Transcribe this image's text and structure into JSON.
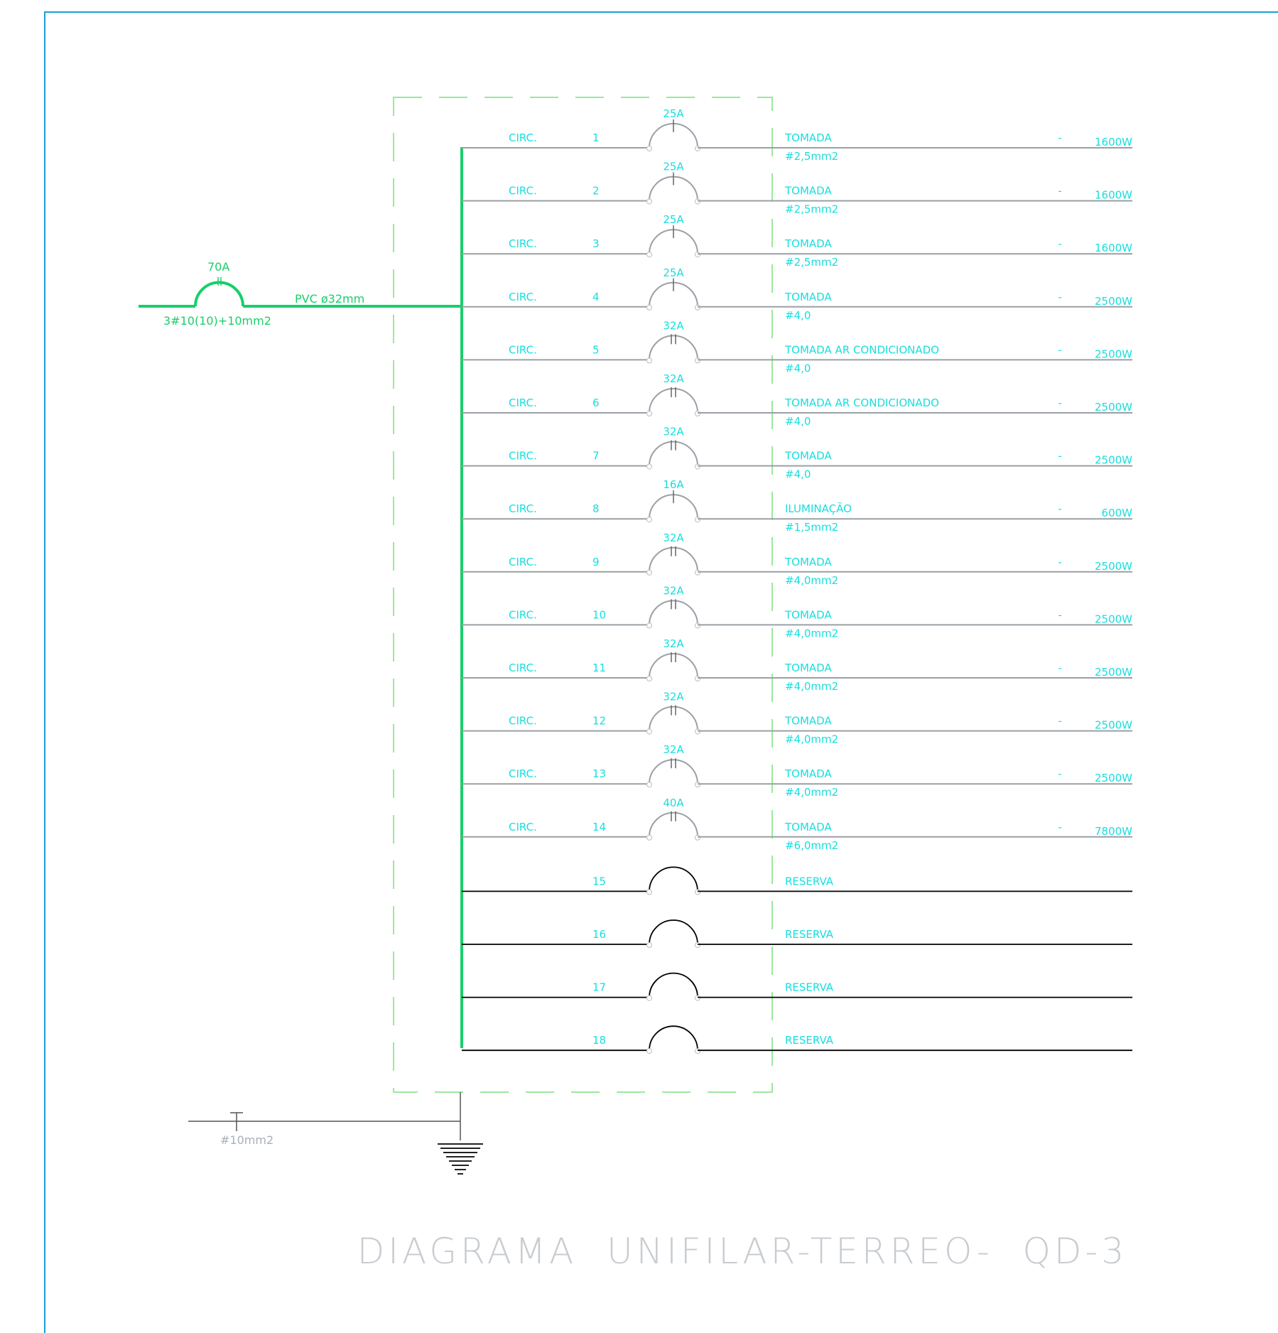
{
  "title": "DIAGRAMA  UNIFILAR-TERREO-  QD-3",
  "main_breaker": {
    "rating": "70A",
    "cable": "3#10(10)+10mm2",
    "conduit": "PVC ø32mm"
  },
  "ground": {
    "cable": "#10mm2"
  },
  "circ_prefix": "CIRC.",
  "circuits": [
    {
      "num": "1",
      "breaker": "25A",
      "desc": "TOMADA",
      "cable": "#2,5mm2",
      "dash": "-",
      "power": "1600W",
      "poles": 1
    },
    {
      "num": "2",
      "breaker": "25A",
      "desc": "TOMADA",
      "cable": "#2,5mm2",
      "dash": "-",
      "power": "1600W",
      "poles": 1
    },
    {
      "num": "3",
      "breaker": "25A",
      "desc": "TOMADA",
      "cable": "#2,5mm2",
      "dash": "-",
      "power": "1600W",
      "poles": 1
    },
    {
      "num": "4",
      "breaker": "25A",
      "desc": "TOMADA",
      "cable": "#4,0",
      "dash": "-",
      "power": "2500W",
      "poles": 1
    },
    {
      "num": "5",
      "breaker": "32A",
      "desc": "TOMADA  AR  CONDICIONADO",
      "cable": "#4,0",
      "dash": "-",
      "power": "2500W",
      "poles": 2
    },
    {
      "num": "6",
      "breaker": "32A",
      "desc": "TOMADA  AR  CONDICIONADO",
      "cable": "#4,0",
      "dash": "-",
      "power": "2500W",
      "poles": 2
    },
    {
      "num": "7",
      "breaker": "32A",
      "desc": "TOMADA",
      "cable": "#4,0",
      "dash": "-",
      "power": "2500W",
      "poles": 2
    },
    {
      "num": "8",
      "breaker": "16A",
      "desc": "ILUMINAÇÃO",
      "cable": "#1,5mm2",
      "dash": "-",
      "power": "600W",
      "poles": 1
    },
    {
      "num": "9",
      "breaker": "32A",
      "desc": "TOMADA",
      "cable": "#4,0mm2",
      "dash": "-",
      "power": "2500W",
      "poles": 2
    },
    {
      "num": "10",
      "breaker": "32A",
      "desc": "TOMADA",
      "cable": "#4,0mm2",
      "dash": "-",
      "power": "2500W",
      "poles": 2
    },
    {
      "num": "11",
      "breaker": "32A",
      "desc": "TOMADA",
      "cable": "#4,0mm2",
      "dash": "-",
      "power": "2500W",
      "poles": 2
    },
    {
      "num": "12",
      "breaker": "32A",
      "desc": "TOMADA",
      "cable": "#4,0mm2",
      "dash": "-",
      "power": "2500W",
      "poles": 2
    },
    {
      "num": "13",
      "breaker": "32A",
      "desc": "TOMADA",
      "cable": "#4,0mm2",
      "dash": "-",
      "power": "2500W",
      "poles": 2
    },
    {
      "num": "14",
      "breaker": "40A",
      "desc": "TOMADA",
      "cable": "#6,0mm2",
      "dash": "-",
      "power": "7800W",
      "poles": 2
    }
  ],
  "reserves": [
    {
      "num": "15",
      "desc": "RESERVA"
    },
    {
      "num": "16",
      "desc": "RESERVA"
    },
    {
      "num": "17",
      "desc": "RESERVA"
    },
    {
      "num": "18",
      "desc": "RESERVA"
    }
  ],
  "colors": {
    "bus": "#18cf6a",
    "text": "#18dede",
    "circuit_line": "#9aa0a6",
    "reserve_line": "#000000",
    "frame": "#1a9fd6"
  }
}
